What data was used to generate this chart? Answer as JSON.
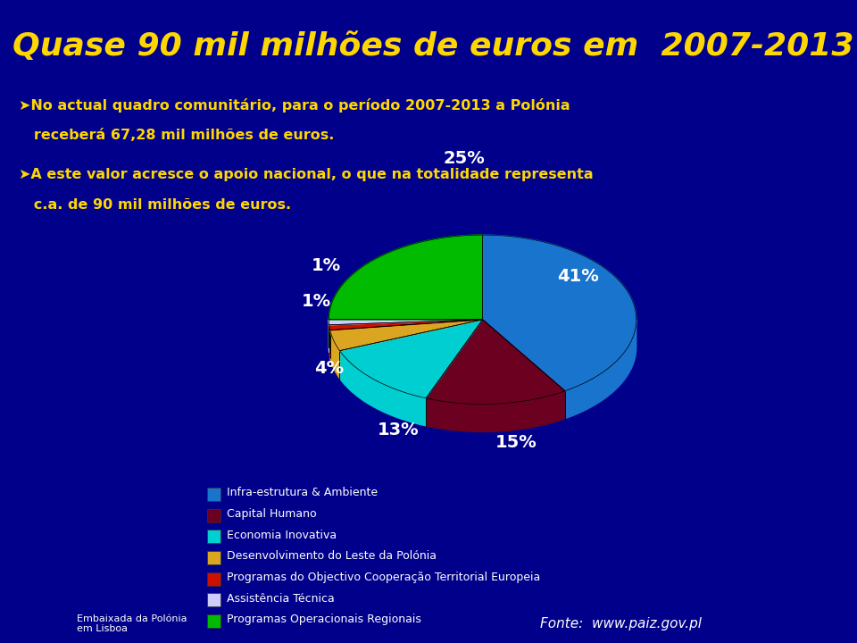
{
  "bg_color": "#00008B",
  "title_bg_color": "#00003A",
  "title": "Quase 90 mil milhões de euros em  2007-2013",
  "title_color": "#FFD700",
  "title_fontsize": 26,
  "text1_line1": "➤No actual quadro comunitário, para o período 2007-2013 a Polónia",
  "text1_line2": "   receberá 67,28 mil milhões de euros.",
  "text2_line1": "➤A este valor acresce o apoio nacional, o que na totalidade representa",
  "text2_line2": "   c.a. de 90 mil milhões de euros.",
  "text_color": "#FFD700",
  "text_fontsize": 11.5,
  "slices": [
    41,
    15,
    13,
    4,
    1,
    1,
    25
  ],
  "pct_labels": [
    "41%",
    "15%",
    "13%",
    "4%",
    "1%",
    "1%",
    "25%"
  ],
  "colors": [
    "#1874CD",
    "#6B0020",
    "#00CED1",
    "#DAA520",
    "#CC1100",
    "#CCCCFF",
    "#00BB00"
  ],
  "legend_labels": [
    "Infra-estrutura & Ambiente",
    "Capital Humano",
    "Economia Inovativa",
    "Desenvolvimento do Leste da Polónia",
    "Programas do Objectivo Cooperação Territorial Europeia",
    "Assistência Técnica",
    "Programas Operacionais Regionais"
  ],
  "legend_colors": [
    "#1874CD",
    "#6B0020",
    "#00CED1",
    "#DAA520",
    "#CC1100",
    "#CCCCFF",
    "#00BB00"
  ],
  "footer_text": "Fonte:  www.paiz.gov.pl",
  "footer_color": "#FFFFFF",
  "embaixada_text": "Embaixada da Polónia\nem Lisboa",
  "embaixada_color": "#FFFFFF"
}
